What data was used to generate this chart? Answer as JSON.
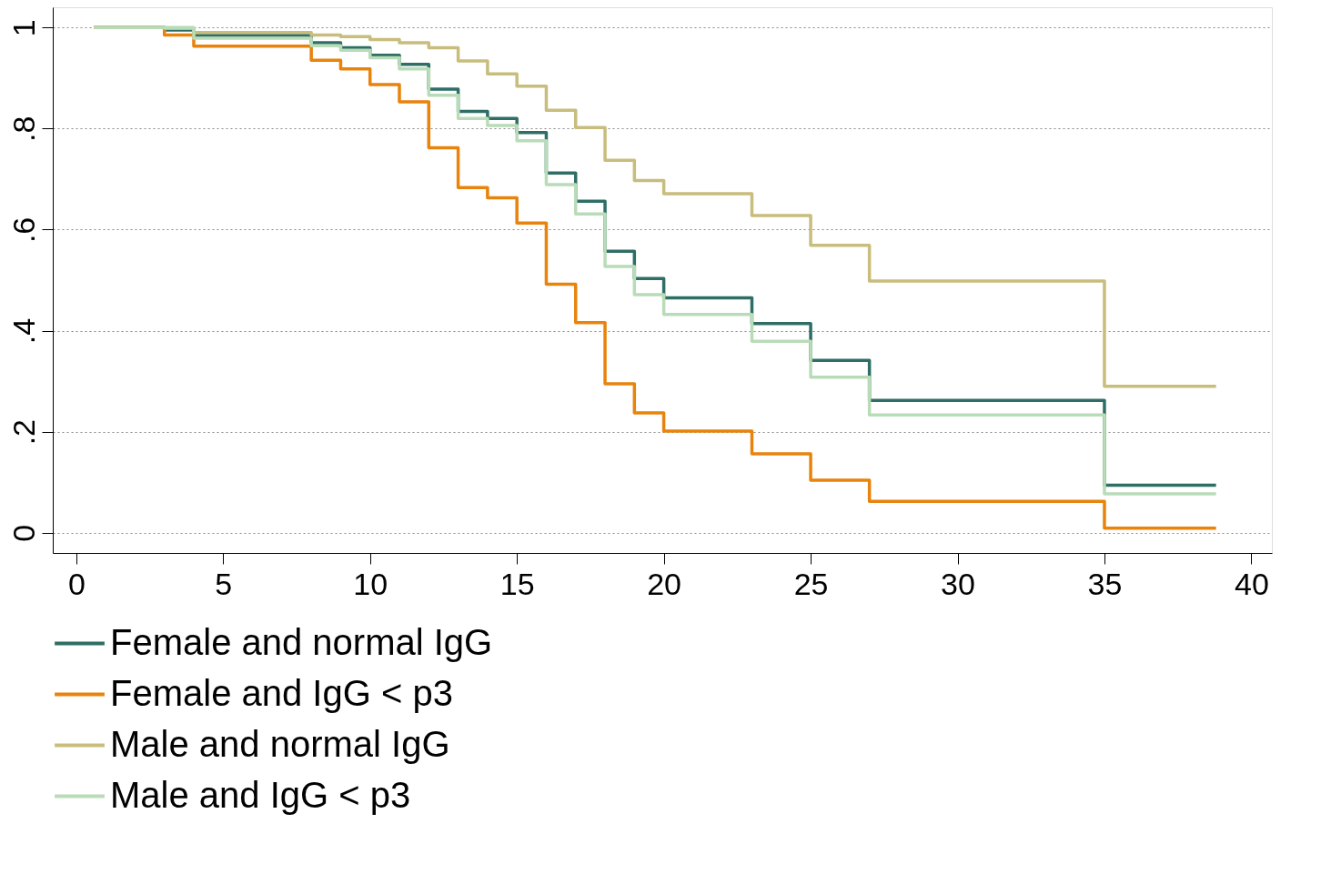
{
  "chart_data": {
    "type": "step",
    "xlim": [
      -0.8,
      40.7
    ],
    "ylim": [
      -0.04,
      1.04
    ],
    "xticks": [
      0,
      5,
      10,
      15,
      20,
      25,
      30,
      35,
      40
    ],
    "yticks": [
      {
        "value": 0,
        "label": "0"
      },
      {
        "value": 0.2,
        "label": ".2"
      },
      {
        "value": 0.4,
        "label": ".4"
      },
      {
        "value": 0.6,
        "label": ".6"
      },
      {
        "value": 0.8,
        "label": ".8"
      },
      {
        "value": 1,
        "label": "1"
      }
    ],
    "grid": "y",
    "legend": "bottom",
    "line_style": "solid",
    "marker": "none",
    "series": [
      {
        "name": "Female and normal IgG",
        "color": "#2e6e65",
        "x": [
          0.6,
          3,
          4,
          8,
          9,
          10,
          11,
          12,
          13,
          14,
          15,
          16,
          17,
          18,
          19,
          20,
          23,
          25,
          27,
          35,
          38.8
        ],
        "values": [
          1,
          0.995,
          0.984,
          0.97,
          0.96,
          0.945,
          0.927,
          0.878,
          0.834,
          0.82,
          0.792,
          0.712,
          0.656,
          0.557,
          0.503,
          0.465,
          0.414,
          0.341,
          0.262,
          0.094,
          0.094
        ]
      },
      {
        "name": "Female and IgG < p3",
        "color": "#e8830c",
        "x": [
          0.6,
          3,
          4,
          8,
          9,
          10,
          11,
          12,
          13,
          14,
          15,
          16,
          17,
          18,
          19,
          20,
          23,
          25,
          27,
          35,
          38.8
        ],
        "values": [
          1,
          0.985,
          0.963,
          0.935,
          0.918,
          0.887,
          0.853,
          0.762,
          0.683,
          0.663,
          0.613,
          0.492,
          0.416,
          0.295,
          0.237,
          0.201,
          0.156,
          0.104,
          0.062,
          0.009,
          0.009
        ]
      },
      {
        "name": "Male and normal IgG",
        "color": "#c8bd7c",
        "x": [
          0.6,
          3,
          4,
          8,
          9,
          10,
          11,
          12,
          13,
          14,
          15,
          16,
          17,
          18,
          19,
          20,
          23,
          25,
          27,
          35,
          38.8
        ],
        "values": [
          1,
          0.998,
          0.99,
          0.985,
          0.982,
          0.976,
          0.97,
          0.96,
          0.934,
          0.908,
          0.884,
          0.836,
          0.802,
          0.737,
          0.697,
          0.671,
          0.628,
          0.569,
          0.498,
          0.29,
          0.29
        ]
      },
      {
        "name": "Male and IgG < p3",
        "color": "#b9dcb8",
        "x": [
          0.6,
          4,
          8,
          9,
          10,
          11,
          12,
          13,
          14,
          15,
          16,
          17,
          18,
          19,
          20,
          23,
          25,
          27,
          35,
          38.8
        ],
        "values": [
          1,
          0.979,
          0.964,
          0.955,
          0.94,
          0.918,
          0.866,
          0.82,
          0.806,
          0.776,
          0.689,
          0.631,
          0.527,
          0.471,
          0.432,
          0.379,
          0.308,
          0.233,
          0.077,
          0.077
        ]
      }
    ]
  }
}
